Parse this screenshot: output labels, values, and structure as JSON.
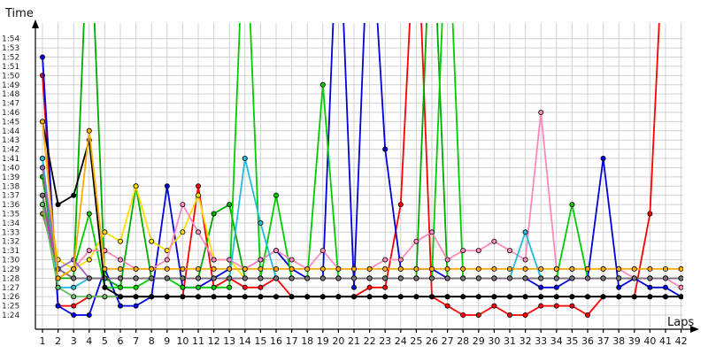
{
  "chart_data": {
    "type": "line",
    "xlabel": "Laps",
    "ylabel": "Time",
    "grid": true,
    "legend": "none",
    "x": [
      1,
      2,
      3,
      4,
      5,
      6,
      7,
      8,
      9,
      10,
      11,
      12,
      13,
      14,
      15,
      16,
      17,
      18,
      19,
      20,
      21,
      22,
      23,
      24,
      25,
      26,
      27,
      28,
      29,
      30,
      31,
      32,
      33,
      34,
      35,
      36,
      37,
      38,
      39,
      40,
      41,
      42
    ],
    "x_tick_labels": [
      "1",
      "2",
      "3",
      "4",
      "5",
      "6",
      "7",
      "8",
      "9",
      "10",
      "11",
      "12",
      "13",
      "14",
      "15",
      "16",
      "17",
      "18",
      "19",
      "20",
      "21",
      "22",
      "23",
      "24",
      "25",
      "26",
      "27",
      "28",
      "29",
      "30",
      "31",
      "32",
      "33",
      "34",
      "35",
      "36",
      "37",
      "38",
      "39",
      "40",
      "41",
      "42"
    ],
    "ylim_seconds": [
      83,
      116
    ],
    "y_tick_seconds": [
      84,
      85,
      86,
      87,
      88,
      89,
      90,
      91,
      92,
      93,
      94,
      95,
      96,
      97,
      98,
      99,
      100,
      101,
      102,
      103,
      104,
      105,
      106,
      107,
      108,
      109,
      110,
      111,
      112,
      113,
      114
    ],
    "y_tick_labels": [
      "1:24",
      "1:25",
      "1:26",
      "1:27",
      "1:28",
      "1:29",
      "1:30",
      "1:31",
      "1:32",
      "1:33",
      "1:34",
      "1:35",
      "1:36",
      "1:37",
      "1:38",
      "1:39",
      "1:40",
      "1:41",
      "1:42",
      "1:43",
      "1:44",
      "1:45",
      "1:46",
      "1:47",
      "1:48",
      "1:49",
      "1:50",
      "1:51",
      "1:52",
      "1:53",
      "1:54"
    ],
    "series": [
      {
        "color": "#ff0000",
        "values": [
          110,
          85,
          85,
          86,
          86,
          86,
          86,
          86,
          86,
          86,
          98,
          87,
          88,
          87,
          87,
          88,
          86,
          86,
          86,
          86,
          86,
          87,
          87,
          96,
          130,
          86,
          85,
          84,
          84,
          85,
          84,
          84,
          85,
          85,
          85,
          84,
          86,
          86,
          86,
          95,
          130,
          null
        ]
      },
      {
        "color": "#0000dd",
        "values": [
          112,
          85,
          84,
          84,
          89,
          85,
          85,
          86,
          98,
          87,
          87,
          88,
          89,
          89,
          90,
          91,
          89,
          88,
          88,
          130,
          87,
          130,
          102,
          89,
          89,
          89,
          88,
          88,
          88,
          88,
          88,
          88,
          87,
          87,
          88,
          88,
          101,
          87,
          88,
          87,
          87,
          86
        ]
      },
      {
        "color": "#00aa00",
        "values": [
          99,
          88,
          88,
          130,
          88,
          87,
          98,
          88,
          88,
          88,
          88,
          95,
          96,
          88,
          88,
          88,
          88,
          88,
          88,
          88,
          88,
          88,
          88,
          88,
          88,
          130,
          88,
          88,
          88,
          88,
          88,
          88,
          88,
          88,
          88,
          88,
          88,
          88,
          88,
          88,
          88,
          88
        ]
      },
      {
        "color": "#00cc00",
        "values": [
          97,
          88,
          89,
          95,
          87,
          87,
          87,
          88,
          88,
          87,
          87,
          87,
          87,
          130,
          88,
          97,
          88,
          88,
          109,
          88,
          88,
          88,
          88,
          88,
          88,
          88,
          130,
          88,
          88,
          88,
          88,
          88,
          88,
          88,
          96,
          88,
          88,
          88,
          88,
          88,
          88,
          88
        ]
      },
      {
        "color": "#ffdd00",
        "values": [
          100,
          90,
          89,
          90,
          93,
          92,
          98,
          92,
          91,
          93,
          97,
          90,
          90,
          88,
          88,
          88,
          88,
          88,
          88,
          88,
          88,
          88,
          88,
          88,
          88,
          88,
          88,
          88,
          88,
          88,
          88,
          88,
          88,
          88,
          88,
          88,
          88,
          88,
          88,
          88,
          88,
          88
        ]
      },
      {
        "color": "#ff88bb",
        "values": [
          101,
          88,
          89,
          91,
          91,
          90,
          89,
          89,
          90,
          96,
          93,
          90,
          90,
          89,
          90,
          91,
          90,
          89,
          91,
          89,
          89,
          89,
          90,
          90,
          92,
          93,
          90,
          91,
          91,
          92,
          91,
          90,
          106,
          89,
          89,
          89,
          89,
          89,
          88,
          88,
          88,
          87
        ]
      },
      {
        "color": "#22bbdd",
        "values": [
          101,
          87,
          87,
          88,
          88,
          88,
          88,
          88,
          88,
          88,
          88,
          88,
          88,
          101,
          94,
          88,
          88,
          88,
          88,
          88,
          88,
          88,
          88,
          88,
          88,
          88,
          88,
          88,
          88,
          88,
          88,
          93,
          88,
          88,
          88,
          88,
          88,
          88,
          88,
          88,
          88,
          88
        ]
      },
      {
        "color": "#9966cc",
        "values": [
          100,
          89,
          90,
          88,
          88,
          88,
          88,
          88,
          88,
          88,
          88,
          88,
          88,
          88,
          88,
          88,
          88,
          88,
          88,
          88,
          88,
          88,
          88,
          88,
          88,
          88,
          88,
          88,
          88,
          88,
          88,
          88,
          88,
          88,
          88,
          88,
          88,
          88,
          88,
          88,
          88,
          88
        ]
      },
      {
        "color": "#888833",
        "values": [
          95,
          89,
          88,
          88,
          88,
          88,
          88,
          88,
          88,
          88,
          88,
          88,
          88,
          88,
          88,
          88,
          88,
          88,
          88,
          88,
          88,
          88,
          88,
          88,
          88,
          88,
          88,
          88,
          88,
          88,
          88,
          88,
          88,
          88,
          88,
          88,
          88,
          88,
          88,
          88,
          88,
          88
        ]
      },
      {
        "color": "#ff00ff",
        "values": [
          96,
          89,
          88,
          88,
          88,
          88,
          88,
          88,
          88,
          88,
          88,
          88,
          88,
          88,
          88,
          88,
          88,
          88,
          88,
          88,
          88,
          88,
          88,
          88,
          88,
          88,
          88,
          88,
          88,
          88,
          88,
          88,
          88,
          88,
          88,
          88,
          88,
          88,
          88,
          88,
          88,
          88
        ]
      },
      {
        "color": "#777777",
        "values": [
          97,
          89,
          88,
          88,
          88,
          88,
          88,
          88,
          88,
          88,
          88,
          88,
          88,
          88,
          88,
          88,
          88,
          88,
          88,
          88,
          88,
          88,
          88,
          88,
          88,
          88,
          88,
          88,
          88,
          88,
          88,
          88,
          88,
          88,
          88,
          88,
          88,
          88,
          88,
          88,
          88,
          88
        ]
      },
      {
        "color": "#66bb66",
        "values": [
          96,
          87,
          86,
          86,
          86,
          86,
          86,
          86,
          86,
          86,
          86,
          86,
          86,
          86,
          86,
          86,
          86,
          86,
          86,
          86,
          86,
          86,
          86,
          86,
          86,
          86,
          86,
          86,
          86,
          86,
          86,
          86,
          86,
          86,
          86,
          86,
          86,
          86,
          86,
          86,
          86,
          86
        ]
      },
      {
        "color": "#000000",
        "values": [
          105,
          96,
          97,
          103,
          87,
          86,
          86,
          86,
          86,
          86,
          86,
          86,
          86,
          86,
          86,
          86,
          86,
          86,
          86,
          86,
          86,
          86,
          86,
          86,
          86,
          86,
          86,
          86,
          86,
          86,
          86,
          86,
          86,
          86,
          86,
          86,
          86,
          86,
          86,
          86,
          86,
          86
        ]
      },
      {
        "color": "#ffaa00",
        "values": [
          105,
          88,
          89,
          104,
          89,
          89,
          89,
          89,
          89,
          89,
          89,
          89,
          89,
          89,
          89,
          89,
          89,
          89,
          89,
          89,
          89,
          89,
          89,
          89,
          89,
          89,
          89,
          89,
          89,
          89,
          89,
          89,
          89,
          89,
          89,
          89,
          89,
          89,
          89,
          89,
          89,
          89
        ]
      }
    ]
  }
}
